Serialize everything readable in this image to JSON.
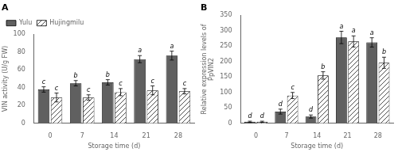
{
  "chart_data": [
    {
      "type": "bar",
      "title": "A",
      "xlabel": "Storage time (d)",
      "ylabel": "VIN activity (U/g FW)",
      "categories": [
        "0",
        "7",
        "14",
        "21",
        "28"
      ],
      "series": [
        {
          "name": "Yulu",
          "color": "#606060",
          "values": [
            38,
            45,
            46,
            72,
            76
          ],
          "errors": [
            3,
            3,
            3,
            4,
            5
          ],
          "letters": [
            "c",
            "b",
            "b",
            "a",
            "a"
          ]
        },
        {
          "name": "Hujingmilu",
          "color": "#ffffff",
          "values": [
            29,
            29,
            35,
            37,
            36
          ],
          "errors": [
            5,
            3,
            4,
            5,
            3
          ],
          "letters": [
            "c",
            "c",
            "c",
            "c",
            "c"
          ]
        }
      ],
      "ylim": [
        0,
        100
      ],
      "yticks": [
        0,
        20,
        40,
        60,
        80,
        100
      ],
      "grid": false,
      "legend": "upper left"
    },
    {
      "type": "bar",
      "title": "B",
      "xlabel": "Storage time (d)",
      "ylabel": [
        "Relative expression levels of",
        "PpVIN2"
      ],
      "categories": [
        "0",
        "7",
        "14",
        "21",
        "28"
      ],
      "series": [
        {
          "name": "Yulu",
          "color": "#606060",
          "values": [
            5,
            38,
            22,
            278,
            262
          ],
          "errors": [
            2,
            8,
            5,
            20,
            15
          ],
          "letters": [
            "d",
            "d",
            "d",
            "a",
            "a"
          ]
        },
        {
          "name": "Hujingmilu",
          "color": "#ffffff",
          "values": [
            5,
            90,
            155,
            265,
            196
          ],
          "errors": [
            2,
            10,
            12,
            18,
            18
          ],
          "letters": [
            "d",
            "c",
            "b",
            "a",
            "b"
          ]
        }
      ],
      "ylim": [
        0,
        350
      ],
      "yticks": [
        0,
        50,
        100,
        150,
        200,
        250,
        300,
        350
      ],
      "grid": false
    }
  ]
}
